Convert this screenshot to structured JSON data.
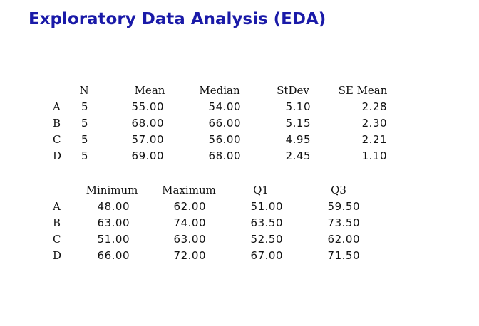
{
  "title": "Exploratory Data Analysis (EDA)",
  "table1": {
    "headers": [
      "N",
      "Mean",
      "Median",
      "StDev",
      "SE Mean"
    ],
    "rows": [
      {
        "label": "A",
        "values": [
          "5",
          "55.00",
          "54.00",
          "5.10",
          "2.28"
        ]
      },
      {
        "label": "B",
        "values": [
          "5",
          "68.00",
          "66.00",
          "5.15",
          "2.30"
        ]
      },
      {
        "label": "C",
        "values": [
          "5",
          "57.00",
          "56.00",
          "4.95",
          "2.21"
        ]
      },
      {
        "label": "D",
        "values": [
          "5",
          "69.00",
          "68.00",
          "2.45",
          "1.10"
        ]
      }
    ]
  },
  "table2": {
    "headers": [
      "Minimum",
      "Maximum",
      "Q1",
      "Q3"
    ],
    "rows": [
      {
        "label": "A",
        "values": [
          "48.00",
          "62.00",
          "51.00",
          "59.50"
        ]
      },
      {
        "label": "B",
        "values": [
          "63.00",
          "74.00",
          "63.50",
          "73.50"
        ]
      },
      {
        "label": "C",
        "values": [
          "51.00",
          "63.00",
          "52.50",
          "62.00"
        ]
      },
      {
        "label": "D",
        "values": [
          "66.00",
          "72.00",
          "67.00",
          "71.50"
        ]
      }
    ]
  }
}
